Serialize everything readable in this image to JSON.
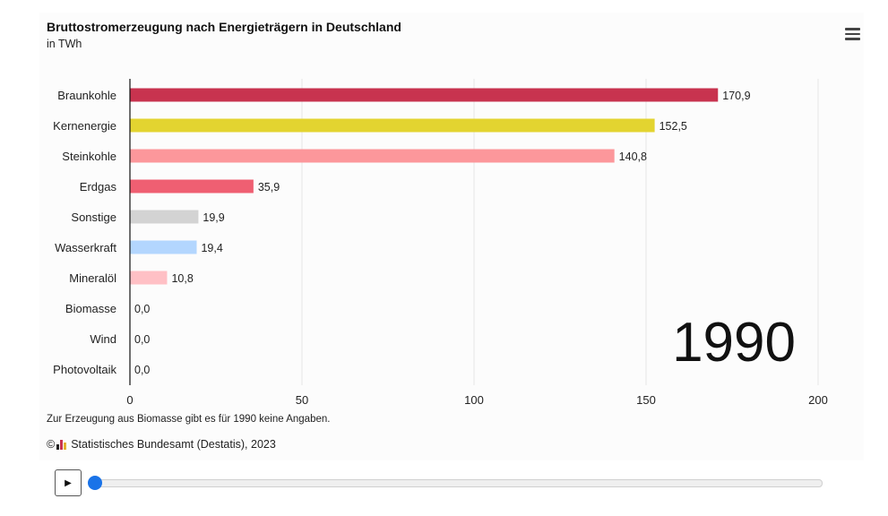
{
  "header": {
    "title": "Bruttostromerzeugung nach Energieträgern in Deutschland",
    "subtitle": "in TWh"
  },
  "menu_icon": "hamburger-menu-icon",
  "chart_data": {
    "type": "bar",
    "orientation": "horizontal",
    "categories": [
      "Braunkohle",
      "Kernenergie",
      "Steinkohle",
      "Erdgas",
      "Sonstige",
      "Wasserkraft",
      "Mineralöl",
      "Biomasse",
      "Wind",
      "Photovoltaik"
    ],
    "values": [
      170.9,
      152.5,
      140.8,
      35.9,
      19.9,
      19.4,
      10.8,
      0.0,
      0.0,
      0.0
    ],
    "value_labels": [
      "170,9",
      "152,5",
      "140,8",
      "35,9",
      "19,9",
      "19,4",
      "10,8",
      "0,0",
      "0,0",
      "0,0"
    ],
    "colors": [
      "#c8334f",
      "#e3d430",
      "#fc979b",
      "#ef5f72",
      "#d3d3d3",
      "#b3d6fe",
      "#ffc0c5",
      "#cccccc",
      "#cccccc",
      "#cccccc"
    ],
    "xlim": [
      0,
      200
    ],
    "xticks": [
      0,
      50,
      100,
      150,
      200
    ],
    "xtick_labels": [
      "0",
      "50",
      "100",
      "150",
      "200"
    ],
    "year_label": "1990",
    "grid": true
  },
  "footer": {
    "note": "Zur Erzeugung aus Biomasse gibt es für 1990 keine Angaben.",
    "copyright": "©",
    "source": "Statistisches Bundesamt (Destatis), 2023"
  },
  "controls": {
    "play_label": "▶",
    "slider_position": 0
  }
}
